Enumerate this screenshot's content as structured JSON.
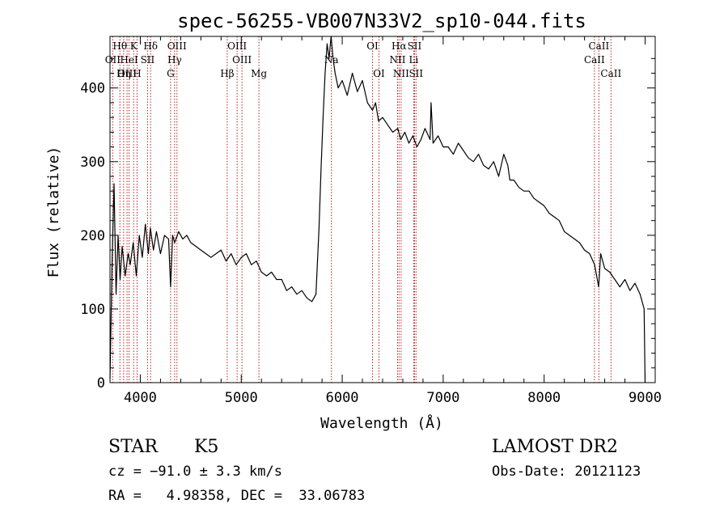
{
  "chart_data": {
    "type": "line",
    "title": "spec-56255-VB007N33V2_sp10-044.fits",
    "xlabel": "Wavelength (Å)",
    "ylabel": "Flux (relative)",
    "xlim": [
      3700,
      9100
    ],
    "ylim": [
      0,
      470
    ],
    "xticks": [
      "4000",
      "5000",
      "6000",
      "7000",
      "8000",
      "9000"
    ],
    "yticks": [
      "0",
      "100",
      "200",
      "300",
      "400"
    ],
    "grid": false,
    "series": [
      {
        "x": [
          3700,
          3720,
          3740,
          3760,
          3780,
          3800,
          3820,
          3850,
          3880,
          3900,
          3930,
          3960,
          3990,
          4020,
          4050,
          4080,
          4100,
          4130,
          4160,
          4200,
          4240,
          4280,
          4300,
          4320,
          4340,
          4380,
          4420,
          4460,
          4500,
          4550,
          4600,
          4650,
          4700,
          4750,
          4800,
          4850,
          4900,
          4950,
          5000,
          5050,
          5100,
          5150,
          5200,
          5250,
          5300,
          5350,
          5400,
          5450,
          5500,
          5550,
          5600,
          5650,
          5700,
          5740,
          5770,
          5790,
          5810,
          5830,
          5850,
          5870,
          5890,
          5910,
          5930,
          5960,
          6000,
          6050,
          6100,
          6150,
          6200,
          6250,
          6300,
          6330,
          6360,
          6400,
          6450,
          6500,
          6550,
          6580,
          6620,
          6660,
          6700,
          6740,
          6780,
          6820,
          6870,
          6880,
          6900,
          6950,
          7000,
          7050,
          7100,
          7150,
          7200,
          7250,
          7300,
          7350,
          7400,
          7450,
          7500,
          7550,
          7600,
          7640,
          7660,
          7700,
          7750,
          7800,
          7850,
          7900,
          7950,
          8000,
          8050,
          8100,
          8150,
          8200,
          8250,
          8300,
          8350,
          8400,
          8450,
          8500,
          8540,
          8560,
          8600,
          8650,
          8700,
          8750,
          8800,
          8850,
          8900,
          8950,
          8990,
          9000
        ],
        "y": [
          5,
          160,
          270,
          120,
          200,
          140,
          185,
          145,
          175,
          160,
          190,
          145,
          200,
          170,
          215,
          175,
          210,
          180,
          205,
          175,
          200,
          195,
          130,
          200,
          190,
          205,
          195,
          200,
          190,
          185,
          180,
          175,
          170,
          175,
          180,
          165,
          175,
          160,
          170,
          175,
          160,
          165,
          150,
          145,
          150,
          140,
          140,
          125,
          130,
          120,
          125,
          115,
          110,
          120,
          210,
          290,
          360,
          420,
          460,
          440,
          470,
          440,
          420,
          400,
          410,
          390,
          420,
          395,
          410,
          380,
          370,
          380,
          355,
          360,
          350,
          340,
          345,
          330,
          340,
          325,
          335,
          320,
          330,
          345,
          330,
          380,
          325,
          335,
          320,
          320,
          310,
          325,
          315,
          305,
          300,
          310,
          295,
          290,
          300,
          280,
          310,
          295,
          275,
          275,
          265,
          260,
          260,
          250,
          245,
          240,
          230,
          225,
          220,
          205,
          200,
          195,
          190,
          180,
          175,
          160,
          130,
          175,
          155,
          150,
          140,
          130,
          140,
          125,
          135,
          120,
          100,
          0
        ]
      }
    ],
    "lines": [
      {
        "name": "Hθ",
        "x": 3798,
        "row": 0
      },
      {
        "name": "K",
        "x": 3934,
        "row": 0
      },
      {
        "name": "Hδ",
        "x": 4102,
        "row": 0
      },
      {
        "name": "OIII",
        "x": 4363,
        "row": 0
      },
      {
        "name": "OIII",
        "x": 4959,
        "row": 0
      },
      {
        "name": "OI",
        "x": 6300,
        "row": 0
      },
      {
        "name": "Hα",
        "x": 6563,
        "row": 0
      },
      {
        "name": "SII",
        "x": 6716,
        "row": 0
      },
      {
        "name": "CaII",
        "x": 8542,
        "row": 0
      },
      {
        "name": "OII",
        "x": 3727,
        "row": 1
      },
      {
        "name": "HeI",
        "x": 3889,
        "row": 1
      },
      {
        "name": "SII",
        "x": 4072,
        "row": 1
      },
      {
        "name": "Hγ",
        "x": 4340,
        "row": 1
      },
      {
        "name": "OIII",
        "x": 5007,
        "row": 1
      },
      {
        "name": "Na",
        "x": 5893,
        "row": 1
      },
      {
        "name": "NII",
        "x": 6548,
        "row": 1
      },
      {
        "name": "Li",
        "x": 6708,
        "row": 1
      },
      {
        "name": "CaII",
        "x": 8498,
        "row": 1
      },
      {
        "name": "OIII",
        "x": 3869,
        "row": 2
      },
      {
        "name": "Hη",
        "x": 3835,
        "row": 2
      },
      {
        "name": "H",
        "x": 3968,
        "row": 2
      },
      {
        "name": "G",
        "x": 4300,
        "row": 2
      },
      {
        "name": "Hβ",
        "x": 4861,
        "row": 2
      },
      {
        "name": "Mg",
        "x": 5175,
        "row": 2
      },
      {
        "name": "OI",
        "x": 6364,
        "row": 2
      },
      {
        "name": "NII",
        "x": 6583,
        "row": 2
      },
      {
        "name": "SII",
        "x": 6731,
        "row": 2
      },
      {
        "name": "CaII",
        "x": 8662,
        "row": 2
      }
    ]
  },
  "info": {
    "class_label": "STAR",
    "subclass": "K5",
    "survey": "LAMOST DR2",
    "cz": "cz = −91.0 ± 3.3 km/s",
    "obs_date": "Obs-Date: 20121123",
    "coords": "RA =   4.98358, DEC =  33.06783"
  },
  "colors": {
    "line": "#000000",
    "marker_line": "#b22222",
    "axes": "#000000"
  }
}
